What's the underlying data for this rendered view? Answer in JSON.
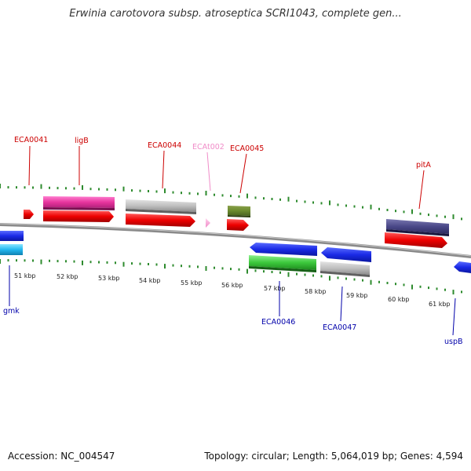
{
  "title": "Erwinia carotovora subsp. atroseptica SCRI1043, complete gen...",
  "footer": {
    "accession": "Accession: NC_004547",
    "topology": "Topology: circular; Length: 5,064,019 bp; Genes: 4,594"
  },
  "colors": {
    "background": "#ffffff",
    "backbone": "#8a8a8a",
    "tick": "#2e8b2e",
    "forward_label": "#cc0000",
    "reverse_label": "#0000aa",
    "trna_label": "#f08cc8"
  },
  "scale_labels": [
    "51 kbp",
    "52 kbp",
    "53 kbp",
    "54 kbp",
    "55 kbp",
    "56 kbp",
    "57 kbp",
    "58 kbp",
    "59 kbp",
    "60 kbp",
    "61 kbp"
  ],
  "labels_top": [
    {
      "text": "ECA0041",
      "kind": "forward"
    },
    {
      "text": "ligB",
      "kind": "forward"
    },
    {
      "text": "ECA0044",
      "kind": "forward"
    },
    {
      "text": "ECAt002",
      "kind": "trna"
    },
    {
      "text": "ECA0045",
      "kind": "forward"
    },
    {
      "text": "pitA",
      "kind": "forward"
    }
  ],
  "labels_bottom": [
    {
      "text": "gmk",
      "kind": "reverse"
    },
    {
      "text": "ECA0046",
      "kind": "reverse"
    },
    {
      "text": "ECA0047",
      "kind": "reverse"
    },
    {
      "text": "uspB",
      "kind": "reverse"
    }
  ]
}
